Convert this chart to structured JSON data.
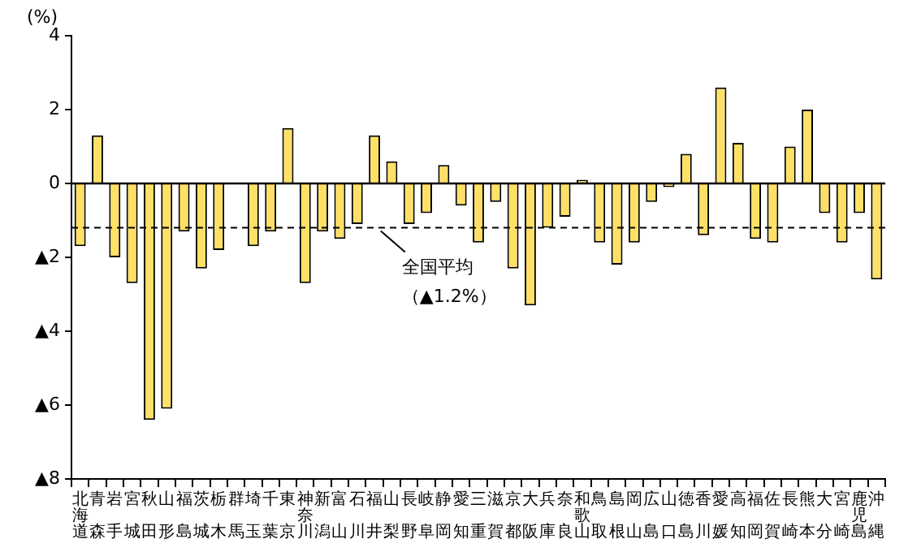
{
  "chart_data": {
    "type": "bar",
    "ylabel": "(%)",
    "categories": [
      "北海道",
      "青森",
      "岩手",
      "宮城",
      "秋田",
      "山形",
      "福島",
      "茨城",
      "栃木",
      "群馬",
      "埼玉",
      "千葉",
      "東京",
      "神奈川",
      "新潟",
      "富山",
      "石川",
      "福井",
      "山梨",
      "長野",
      "岐阜",
      "静岡",
      "愛知",
      "三重",
      "滋賀",
      "京都",
      "大阪",
      "兵庫",
      "奈良",
      "和歌山",
      "鳥取",
      "島根",
      "岡山",
      "広島",
      "山口",
      "徳島",
      "香川",
      "愛媛",
      "高知",
      "福岡",
      "佐賀",
      "長崎",
      "熊本",
      "大分",
      "宮崎",
      "鹿児島",
      "沖縄"
    ],
    "values": [
      -1.7,
      1.3,
      -2.0,
      -2.7,
      -6.4,
      -6.1,
      -1.3,
      -2.3,
      -1.8,
      0,
      -1.7,
      -1.3,
      1.5,
      -2.7,
      -1.3,
      -1.5,
      -1.1,
      1.3,
      0.6,
      -1.1,
      -0.8,
      0.5,
      -0.6,
      -1.6,
      -0.5,
      -2.3,
      -3.3,
      -1.2,
      -0.9,
      0.1,
      -1.6,
      -2.2,
      -1.6,
      -0.5,
      -0.1,
      0.8,
      -1.4,
      2.6,
      1.1,
      -1.5,
      -1.6,
      1.0,
      2.0,
      -0.8,
      -1.6,
      -0.8,
      -2.6
    ],
    "color": "#ffe066",
    "ylim": [
      -8,
      4
    ],
    "yticks": [
      {
        "value": -8,
        "label": "▲8"
      },
      {
        "value": -6,
        "label": "▲6"
      },
      {
        "value": -4,
        "label": "▲4"
      },
      {
        "value": -2,
        "label": "▲2"
      },
      0,
      2,
      4
    ],
    "ref_lines": [
      {
        "axis": "y",
        "value": -1.2,
        "label": "全国平均（▲1.2%）",
        "line_style": "dashed"
      }
    ],
    "line_style": "solid"
  }
}
